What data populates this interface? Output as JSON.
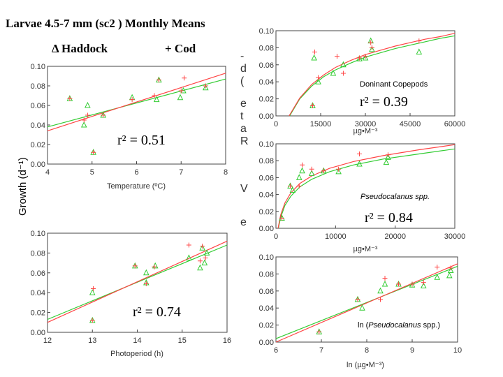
{
  "header": {
    "title": "Larvae 4.5-7 mm (sc2 ) Monthly Means",
    "legend_haddock": "Δ Haddock",
    "legend_cod": "+ Cod",
    "ylabel": "Growth (d⁻¹)",
    "clipped_left_text": [
      "-",
      "d",
      "(",
      "e",
      "t",
      "a",
      "R",
      "V",
      "e"
    ]
  },
  "colors": {
    "haddock": "#33cc33",
    "cod": "#ff4444",
    "axis": "#444444"
  },
  "chart_data": [
    {
      "id": "temperature",
      "type": "scatter",
      "xlabel": "Temperature (ºC)",
      "xlim": [
        4,
        8
      ],
      "ylim": [
        0,
        0.1
      ],
      "xticks": [
        "4",
        "5",
        "6",
        "7",
        "8"
      ],
      "yticks": [
        "0.00",
        "0.02",
        "0.04",
        "0.06",
        "0.08",
        "0.10"
      ],
      "annotation": "r² = 0.51",
      "fit": "linear",
      "series": [
        {
          "name": "Haddock",
          "marker": "triangle",
          "points": [
            [
              4.5,
              0.067
            ],
            [
              4.82,
              0.04
            ],
            [
              4.9,
              0.06
            ],
            [
              5.03,
              0.012
            ],
            [
              5.25,
              0.05
            ],
            [
              5.9,
              0.068
            ],
            [
              6.45,
              0.066
            ],
            [
              6.5,
              0.086
            ],
            [
              6.98,
              0.068
            ],
            [
              7.05,
              0.075
            ],
            [
              7.55,
              0.078
            ]
          ]
        },
        {
          "name": "Cod",
          "marker": "plus",
          "points": [
            [
              4.5,
              0.067
            ],
            [
              4.82,
              0.045
            ],
            [
              4.9,
              0.05
            ],
            [
              5.03,
              0.012
            ],
            [
              5.25,
              0.05
            ],
            [
              5.9,
              0.066
            ],
            [
              6.4,
              0.07
            ],
            [
              6.5,
              0.086
            ],
            [
              7.0,
              0.075
            ],
            [
              7.07,
              0.088
            ],
            [
              7.55,
              0.08
            ]
          ]
        }
      ],
      "fits": [
        {
          "name": "Haddock",
          "y": [
            0.038,
            0.087
          ]
        },
        {
          "name": "Cod",
          "y": [
            0.034,
            0.093
          ]
        }
      ]
    },
    {
      "id": "photoperiod",
      "type": "scatter",
      "xlabel": "Photoperiod (h)",
      "xlim": [
        12,
        16
      ],
      "ylim": [
        0,
        0.1
      ],
      "xticks": [
        "12",
        "13",
        "14",
        "15",
        "16"
      ],
      "yticks": [
        "0.00",
        "0.02",
        "0.04",
        "0.06",
        "0.08",
        "0.10"
      ],
      "annotation": "r² = 0.74",
      "fit": "linear",
      "series": [
        {
          "name": "Haddock",
          "marker": "triangle",
          "points": [
            [
              13.0,
              0.04
            ],
            [
              13.0,
              0.012
            ],
            [
              13.95,
              0.067
            ],
            [
              14.2,
              0.05
            ],
            [
              14.2,
              0.06
            ],
            [
              14.4,
              0.067
            ],
            [
              15.15,
              0.075
            ],
            [
              15.4,
              0.065
            ],
            [
              15.45,
              0.085
            ],
            [
              15.5,
              0.07
            ],
            [
              15.55,
              0.08
            ]
          ]
        },
        {
          "name": "Cod",
          "marker": "plus",
          "points": [
            [
              13.02,
              0.044
            ],
            [
              13.0,
              0.012
            ],
            [
              13.95,
              0.067
            ],
            [
              14.2,
              0.049
            ],
            [
              14.38,
              0.066
            ],
            [
              15.15,
              0.088
            ],
            [
              15.4,
              0.072
            ],
            [
              15.45,
              0.087
            ],
            [
              15.52,
              0.075
            ]
          ]
        }
      ],
      "fits": [
        {
          "name": "Haddock",
          "y": [
            0.013,
            0.088
          ]
        },
        {
          "name": "Cod",
          "y": [
            0.01,
            0.092
          ]
        }
      ]
    },
    {
      "id": "dominant-copepods",
      "type": "scatter",
      "xlabel": "µg•M⁻³",
      "xlim": [
        0,
        60000
      ],
      "ylim": [
        0,
        0.1
      ],
      "xticks": [
        "0",
        "15000",
        "30000",
        "45000",
        "60000"
      ],
      "yticks": [
        "0.00",
        "0.02",
        "0.04",
        "0.06",
        "0.08",
        "0.10"
      ],
      "note": "Doninant Copepods",
      "annotation": "r² = 0.39",
      "fit": "log",
      "series": [
        {
          "name": "Haddock",
          "marker": "triangle",
          "points": [
            [
              12300,
              0.012
            ],
            [
              12800,
              0.068
            ],
            [
              14200,
              0.04
            ],
            [
              19200,
              0.05
            ],
            [
              22600,
              0.06
            ],
            [
              28000,
              0.067
            ],
            [
              30000,
              0.068
            ],
            [
              31800,
              0.088
            ],
            [
              32200,
              0.078
            ],
            [
              48000,
              0.075
            ]
          ]
        },
        {
          "name": "Cod",
          "marker": "plus",
          "points": [
            [
              12300,
              0.012
            ],
            [
              13000,
              0.075
            ],
            [
              14200,
              0.045
            ],
            [
              20500,
              0.07
            ],
            [
              22600,
              0.05
            ],
            [
              28000,
              0.068
            ],
            [
              30000,
              0.07
            ],
            [
              31800,
              0.086
            ],
            [
              32200,
              0.08
            ],
            [
              48000,
              0.088
            ]
          ]
        }
      ],
      "fits": [
        {
          "name": "Haddock",
          "x": [
            4600,
            8000,
            12000,
            16000,
            20000,
            25000,
            30000,
            35000,
            40000,
            45000,
            50000,
            55000,
            60000
          ],
          "y": [
            0,
            0.02,
            0.035,
            0.046,
            0.054,
            0.062,
            0.069,
            0.074,
            0.079,
            0.083,
            0.087,
            0.091,
            0.094
          ]
        },
        {
          "name": "Cod",
          "x": [
            4400,
            8000,
            12000,
            16000,
            20000,
            25000,
            30000,
            35000,
            40000,
            45000,
            50000,
            55000,
            60000
          ],
          "y": [
            0,
            0.021,
            0.037,
            0.048,
            0.057,
            0.065,
            0.072,
            0.077,
            0.082,
            0.086,
            0.09,
            0.093,
            0.097
          ]
        }
      ]
    },
    {
      "id": "pseudocalanus",
      "type": "scatter",
      "xlabel": "µg•M⁻³",
      "xlim": [
        0,
        30000
      ],
      "ylim": [
        0,
        0.1
      ],
      "xticks": [
        "0",
        "10000",
        "20000",
        "30000"
      ],
      "yticks": [
        "0.00",
        "0.02",
        "0.04",
        "0.06",
        "0.08",
        "0.10"
      ],
      "note": "Pseudocalanus spp.",
      "annotation": "r² = 0.84",
      "fit": "log",
      "series": [
        {
          "name": "Haddock",
          "marker": "triangle",
          "points": [
            [
              1000,
              0.012
            ],
            [
              2400,
              0.05
            ],
            [
              2800,
              0.045
            ],
            [
              3900,
              0.06
            ],
            [
              4400,
              0.068
            ],
            [
              6000,
              0.065
            ],
            [
              8000,
              0.068
            ],
            [
              10500,
              0.067
            ],
            [
              14000,
              0.076
            ],
            [
              18500,
              0.078
            ],
            [
              18800,
              0.084
            ]
          ]
        },
        {
          "name": "Cod",
          "marker": "plus",
          "points": [
            [
              1000,
              0.012
            ],
            [
              2400,
              0.05
            ],
            [
              3900,
              0.05
            ],
            [
              4400,
              0.075
            ],
            [
              6000,
              0.07
            ],
            [
              8000,
              0.068
            ],
            [
              10500,
              0.07
            ],
            [
              14000,
              0.088
            ],
            [
              18800,
              0.087
            ]
          ]
        }
      ],
      "fits": [
        {
          "name": "Haddock",
          "x": [
            400,
            800,
            1500,
            2500,
            4000,
            6000,
            9000,
            13000,
            18000,
            24000,
            30000
          ],
          "y": [
            0,
            0.013,
            0.027,
            0.038,
            0.049,
            0.058,
            0.067,
            0.075,
            0.082,
            0.088,
            0.094
          ]
        },
        {
          "name": "Cod",
          "x": [
            350,
            800,
            1500,
            2500,
            4000,
            6000,
            9000,
            13000,
            18000,
            24000,
            30000
          ],
          "y": [
            0,
            0.016,
            0.03,
            0.042,
            0.053,
            0.062,
            0.071,
            0.079,
            0.086,
            0.093,
            0.099
          ]
        }
      ]
    },
    {
      "id": "ln-pseudocalanus",
      "type": "scatter",
      "xlabel": "ln (µg•M⁻³)",
      "xlim": [
        6,
        10
      ],
      "ylim": [
        0,
        0.1
      ],
      "xticks": [
        "6",
        "7",
        "8",
        "9",
        "10"
      ],
      "yticks": [
        "0.00",
        "0.02",
        "0.04",
        "0.06",
        "0.08",
        "0.10"
      ],
      "note_prefix": "ln (",
      "note_italic": "Pseudocalanus",
      "note_suffix": " spp.)",
      "fit": "linear",
      "series": [
        {
          "name": "Haddock",
          "marker": "triangle",
          "points": [
            [
              6.95,
              0.012
            ],
            [
              7.8,
              0.05
            ],
            [
              7.9,
              0.04
            ],
            [
              8.3,
              0.06
            ],
            [
              8.4,
              0.068
            ],
            [
              8.7,
              0.068
            ],
            [
              9.0,
              0.067
            ],
            [
              9.25,
              0.066
            ],
            [
              9.55,
              0.076
            ],
            [
              9.82,
              0.078
            ],
            [
              9.85,
              0.084
            ]
          ]
        },
        {
          "name": "Cod",
          "marker": "plus",
          "points": [
            [
              6.95,
              0.012
            ],
            [
              7.8,
              0.05
            ],
            [
              8.3,
              0.05
            ],
            [
              8.4,
              0.075
            ],
            [
              8.7,
              0.068
            ],
            [
              9.0,
              0.068
            ],
            [
              9.25,
              0.07
            ],
            [
              9.55,
              0.088
            ],
            [
              9.85,
              0.087
            ]
          ]
        }
      ],
      "fits": [
        {
          "name": "Haddock",
          "y": [
            0.004,
            0.089
          ]
        },
        {
          "name": "Cod",
          "y": [
            0.0,
            0.092
          ]
        }
      ]
    }
  ]
}
